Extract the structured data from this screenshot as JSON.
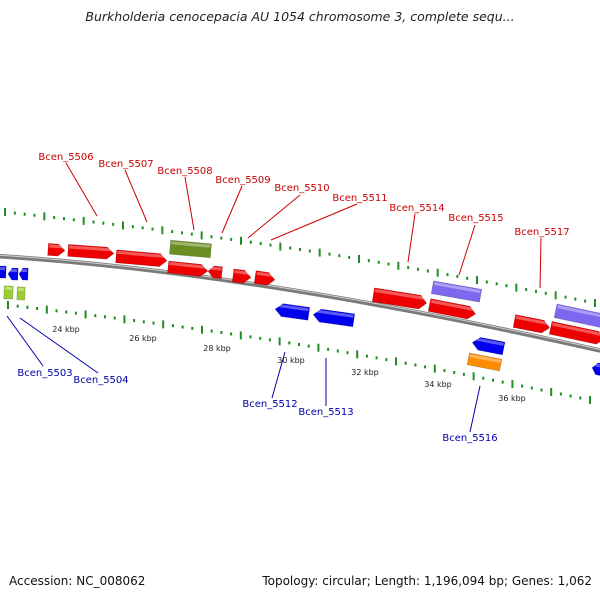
{
  "title": "Burkholderia cenocepacia AU 1054 chromosome 3, complete sequ...",
  "footer": {
    "accession_label": "Accession:",
    "accession": "NC_008062",
    "topology_label": "Topology:",
    "topology": "circular",
    "length_label": "Length:",
    "length": "1,196,094 bp",
    "genes_label": "Genes:",
    "genes": "1,062"
  },
  "colors": {
    "red_gene": "#ee0000",
    "blue_gene": "#0000ee",
    "olive_gene": "#6b8e23",
    "purple_gene": "#7b68ee",
    "orange_gene": "#ff8c00",
    "lime_gene": "#9acd32",
    "forward_label": "#cc0000",
    "reverse_label": "#0000aa",
    "tick": "#228b22",
    "backbone": "#888888"
  },
  "scale_labels": [
    "24 kbp",
    "26 kbp",
    "28 kbp",
    "30 kbp",
    "32 kbp",
    "34 kbp",
    "36 kbp"
  ],
  "forward_gene_labels": [
    "Bcen_5506",
    "Bcen_5507",
    "Bcen_5508",
    "Bcen_5509",
    "Bcen_5510",
    "Bcen_5511",
    "Bcen_5514",
    "Bcen_5515",
    "Bcen_5517"
  ],
  "reverse_gene_labels": [
    "Bcen_5503",
    "Bcen_5504",
    "Bcen_5512",
    "Bcen_5513",
    "Bcen_5516"
  ]
}
